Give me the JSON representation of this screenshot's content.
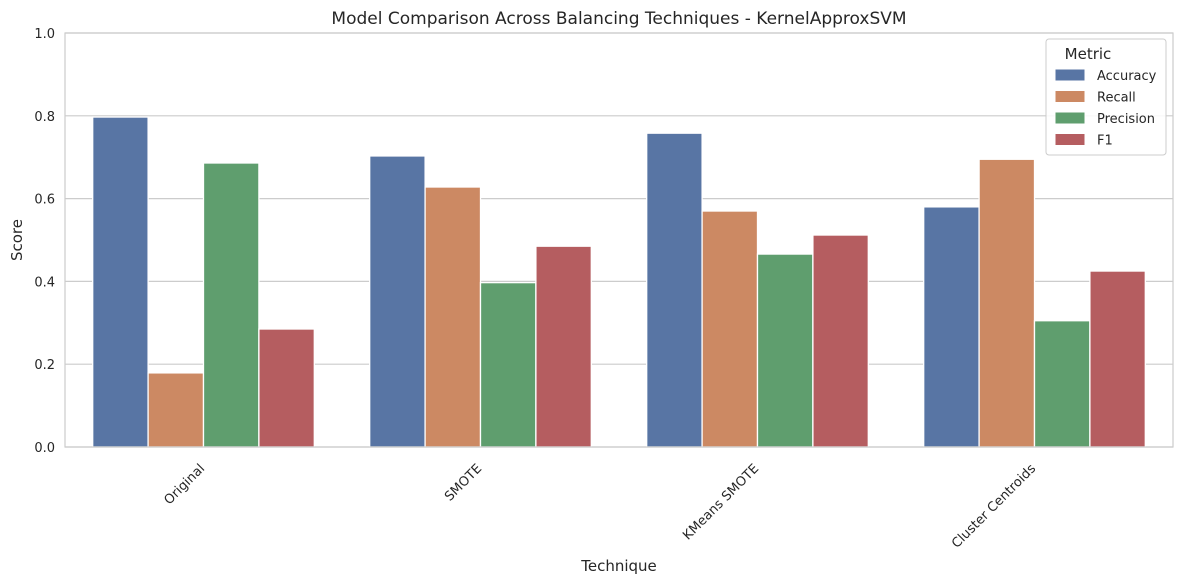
{
  "chart_data": {
    "type": "bar",
    "title": "Model Comparison Across Balancing Techniques - KernelApproxSVM",
    "xlabel": "Technique",
    "ylabel": "Score",
    "ylim": [
      0,
      1
    ],
    "yticks": [
      "0.0",
      "0.2",
      "0.4",
      "0.6",
      "0.8",
      "1.0"
    ],
    "grid": true,
    "categories": [
      "Original",
      "SMOTE",
      "KMeans SMOTE",
      "Cluster Centroids"
    ],
    "series": [
      {
        "name": "Accuracy",
        "color": "#5875a4",
        "values": [
          0.797,
          0.703,
          0.758,
          0.58
        ]
      },
      {
        "name": "Recall",
        "color": "#cc8963",
        "values": [
          0.179,
          0.628,
          0.57,
          0.695
        ]
      },
      {
        "name": "Precision",
        "color": "#5f9e6e",
        "values": [
          0.686,
          0.397,
          0.466,
          0.305
        ]
      },
      {
        "name": "F1",
        "color": "#b55d60",
        "values": [
          0.285,
          0.485,
          0.512,
          0.425
        ]
      }
    ],
    "legend": {
      "title": "Metric",
      "position": "top-right"
    }
  }
}
